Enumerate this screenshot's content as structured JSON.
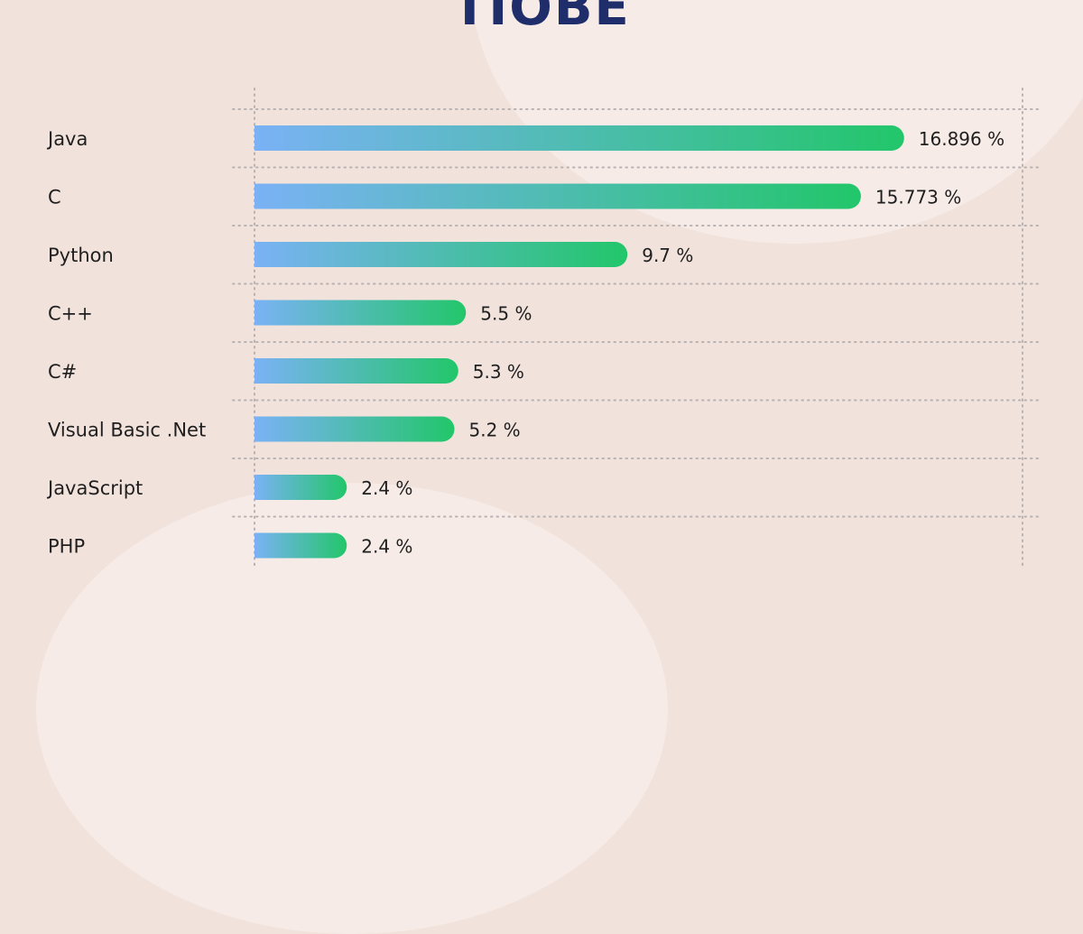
{
  "title": "TIOBE",
  "colors": {
    "background": "#f1e2dc",
    "title": "#1f2e6b",
    "bar_start": "#7ab2f5",
    "bar_end": "#22c66a",
    "grid": "#b9b2b2"
  },
  "chart_data": {
    "type": "bar",
    "orientation": "horizontal",
    "title": "TIOBE",
    "categories": [
      "Java",
      "C",
      "Python",
      "C++",
      "C#",
      "Visual Basic .Net",
      "JavaScript",
      "PHP"
    ],
    "values": [
      16.896,
      15.773,
      9.7,
      5.5,
      5.3,
      5.2,
      2.4,
      2.4
    ],
    "value_labels": [
      "16.896 %",
      "15.773 %",
      "9.7 %",
      "5.5 %",
      "5.3 %",
      "5.2 %",
      "2.4 %",
      "2.4 %"
    ],
    "unit": "%",
    "xlim": [
      0,
      20
    ],
    "grid": true,
    "legend": "none"
  }
}
